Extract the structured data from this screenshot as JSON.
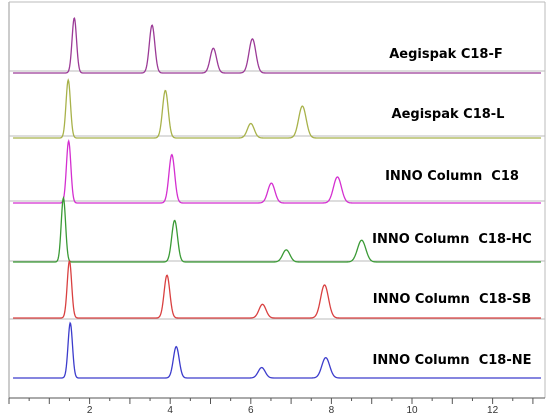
{
  "chart_data": {
    "type": "line",
    "title": "",
    "xlabel": "",
    "ylabel": "",
    "xlim": [
      0,
      13.3
    ],
    "x_ticks": [
      "2",
      "4",
      "6",
      "8",
      "10",
      "12"
    ],
    "x_tick_values": [
      2,
      4,
      6,
      8,
      10,
      12
    ],
    "grid": false,
    "legend": "none",
    "series": [
      {
        "name": "Aegispak C18-F",
        "color": "#9b3a96",
        "peaks": [
          {
            "x": 1.62,
            "h": 1.0
          },
          {
            "x": 3.55,
            "h": 0.87
          },
          {
            "x": 5.07,
            "h": 0.45
          },
          {
            "x": 6.04,
            "h": 0.62
          }
        ]
      },
      {
        "name": "Aegispak C18-L",
        "color": "#a8b24a",
        "peaks": [
          {
            "x": 1.47,
            "h": 1.0
          },
          {
            "x": 3.88,
            "h": 0.82
          },
          {
            "x": 6.0,
            "h": 0.25
          },
          {
            "x": 7.28,
            "h": 0.55
          }
        ]
      },
      {
        "name": "INNO Column  C18",
        "color": "#d42fd0",
        "peaks": [
          {
            "x": 1.48,
            "h": 1.0
          },
          {
            "x": 4.04,
            "h": 0.78
          },
          {
            "x": 6.51,
            "h": 0.32
          },
          {
            "x": 8.15,
            "h": 0.42
          }
        ]
      },
      {
        "name": "INNO Column  C18-HC",
        "color": "#3a9a35",
        "peaks": [
          {
            "x": 1.35,
            "h": 1.0
          },
          {
            "x": 4.11,
            "h": 0.65
          },
          {
            "x": 6.88,
            "h": 0.19
          },
          {
            "x": 8.75,
            "h": 0.34
          }
        ]
      },
      {
        "name": "INNO Column  C18-SB",
        "color": "#d94040",
        "peaks": [
          {
            "x": 1.5,
            "h": 1.0
          },
          {
            "x": 3.92,
            "h": 0.75
          },
          {
            "x": 6.29,
            "h": 0.24
          },
          {
            "x": 7.83,
            "h": 0.58
          }
        ]
      },
      {
        "name": "INNO Column  C18-NE",
        "color": "#3c3ccc",
        "peaks": [
          {
            "x": 1.52,
            "h": 1.0
          },
          {
            "x": 4.15,
            "h": 0.57
          },
          {
            "x": 6.27,
            "h": 0.19
          },
          {
            "x": 7.86,
            "h": 0.37
          }
        ]
      }
    ]
  }
}
